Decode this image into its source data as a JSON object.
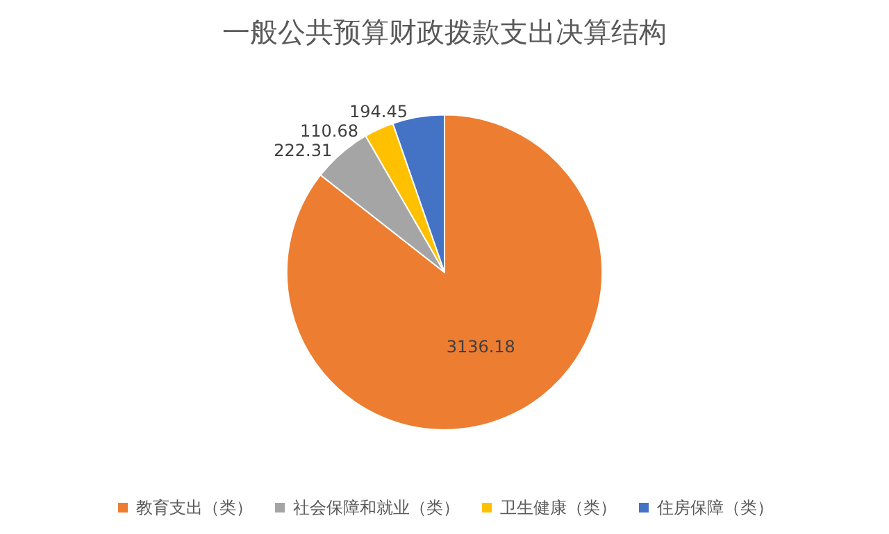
{
  "chart_data": {
    "type": "pie",
    "title": "一般公共预算财政拨款支出决算结构",
    "categories": [
      "教育支出（类）",
      "社会保障和就业（类）",
      "卫生健康（类）",
      "住房保障（类）"
    ],
    "values": [
      3136.18,
      222.31,
      110.68,
      194.45
    ],
    "colors": [
      "#ed7d31",
      "#a5a5a5",
      "#ffc000",
      "#4472c4"
    ],
    "data_labels": true,
    "legend": "bottom"
  }
}
